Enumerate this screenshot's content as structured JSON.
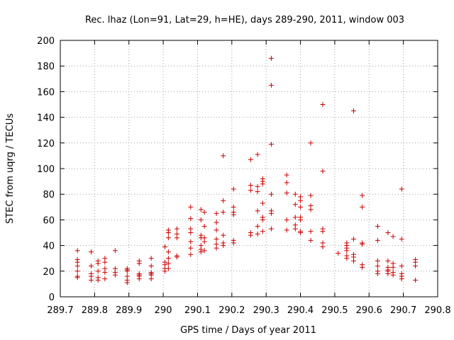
{
  "chart_data": {
    "type": "scatter",
    "title": "Rec. lhaz (Lon=91, Lat=29, h=HE), days 289-290, 2011, window 003",
    "xlabel": "GPS time / Days of year 2011",
    "ylabel": "STEC from uqrg / TECUs",
    "xlim": [
      289.7,
      290.8
    ],
    "ylim": [
      0,
      200
    ],
    "x_ticks": [
      "289.7",
      "289.8",
      "289.9",
      "290",
      "290.1",
      "290.2",
      "290.3",
      "290.4",
      "290.5",
      "290.6",
      "290.7",
      "290.8"
    ],
    "x_tick_values": [
      289.7,
      289.8,
      289.9,
      290.0,
      290.1,
      290.2,
      290.3,
      290.4,
      290.5,
      290.6,
      290.7,
      290.8
    ],
    "y_ticks": [
      "0",
      "20",
      "40",
      "60",
      "80",
      "100",
      "120",
      "140",
      "160",
      "180",
      "200"
    ],
    "y_tick_values": [
      0,
      20,
      40,
      60,
      80,
      100,
      120,
      140,
      160,
      180,
      200
    ],
    "grid": true,
    "marker": "plus",
    "colors": {
      "points": "#cc0000",
      "grid": "#a0a0a0",
      "axis": "#000000"
    },
    "series": [
      {
        "points": [
          [
            289.75,
            36
          ],
          [
            289.75,
            29
          ],
          [
            289.75,
            27
          ],
          [
            289.75,
            24
          ],
          [
            289.75,
            20
          ],
          [
            289.75,
            16
          ],
          [
            289.75,
            15
          ],
          [
            289.79,
            35
          ],
          [
            289.79,
            24
          ],
          [
            289.79,
            18
          ],
          [
            289.79,
            16
          ],
          [
            289.79,
            13
          ],
          [
            289.81,
            28
          ],
          [
            289.81,
            26
          ],
          [
            289.81,
            20
          ],
          [
            289.81,
            15
          ],
          [
            289.81,
            13
          ],
          [
            289.83,
            30
          ],
          [
            289.83,
            27
          ],
          [
            289.83,
            22
          ],
          [
            289.83,
            19
          ],
          [
            289.83,
            14
          ],
          [
            289.86,
            36
          ],
          [
            289.86,
            22
          ],
          [
            289.86,
            19
          ],
          [
            289.86,
            17
          ],
          [
            289.895,
            22
          ],
          [
            289.895,
            21
          ],
          [
            289.895,
            20
          ],
          [
            289.895,
            16
          ],
          [
            289.895,
            13
          ],
          [
            289.895,
            11
          ],
          [
            289.93,
            28
          ],
          [
            289.93,
            26
          ],
          [
            289.93,
            18
          ],
          [
            289.93,
            17
          ],
          [
            289.93,
            16
          ],
          [
            289.93,
            14
          ],
          [
            289.965,
            30
          ],
          [
            289.965,
            24
          ],
          [
            289.965,
            19
          ],
          [
            289.965,
            18
          ],
          [
            289.965,
            17
          ],
          [
            289.965,
            14
          ],
          [
            290.005,
            39
          ],
          [
            290.005,
            27
          ],
          [
            290.005,
            25
          ],
          [
            290.005,
            22
          ],
          [
            290.005,
            20
          ],
          [
            290.015,
            52
          ],
          [
            290.015,
            50
          ],
          [
            290.015,
            46
          ],
          [
            290.015,
            35
          ],
          [
            290.015,
            30
          ],
          [
            290.015,
            26
          ],
          [
            290.015,
            22
          ],
          [
            290.04,
            53
          ],
          [
            290.04,
            49
          ],
          [
            290.04,
            46
          ],
          [
            290.04,
            32
          ],
          [
            290.04,
            31
          ],
          [
            290.08,
            70
          ],
          [
            290.08,
            61
          ],
          [
            290.08,
            53
          ],
          [
            290.08,
            50
          ],
          [
            290.08,
            43
          ],
          [
            290.08,
            38
          ],
          [
            290.08,
            33
          ],
          [
            290.11,
            68
          ],
          [
            290.11,
            60
          ],
          [
            290.11,
            48
          ],
          [
            290.11,
            46
          ],
          [
            290.11,
            40
          ],
          [
            290.11,
            37
          ],
          [
            290.11,
            35
          ],
          [
            290.12,
            66
          ],
          [
            290.12,
            55
          ],
          [
            290.12,
            46
          ],
          [
            290.12,
            43
          ],
          [
            290.12,
            36
          ],
          [
            290.155,
            65
          ],
          [
            290.155,
            58
          ],
          [
            290.155,
            52
          ],
          [
            290.155,
            45
          ],
          [
            290.155,
            41
          ],
          [
            290.155,
            38
          ],
          [
            290.175,
            110
          ],
          [
            290.175,
            75
          ],
          [
            290.175,
            66
          ],
          [
            290.175,
            48
          ],
          [
            290.175,
            42
          ],
          [
            290.175,
            40
          ],
          [
            290.205,
            84
          ],
          [
            290.205,
            70
          ],
          [
            290.205,
            66
          ],
          [
            290.205,
            64
          ],
          [
            290.205,
            44
          ],
          [
            290.205,
            42
          ],
          [
            290.255,
            107
          ],
          [
            290.255,
            87
          ],
          [
            290.255,
            83
          ],
          [
            290.255,
            50
          ],
          [
            290.255,
            48
          ],
          [
            290.275,
            111
          ],
          [
            290.275,
            86
          ],
          [
            290.275,
            82
          ],
          [
            290.275,
            67
          ],
          [
            290.275,
            55
          ],
          [
            290.275,
            49
          ],
          [
            290.29,
            92
          ],
          [
            290.29,
            90
          ],
          [
            290.29,
            88
          ],
          [
            290.29,
            73
          ],
          [
            290.29,
            62
          ],
          [
            290.29,
            60
          ],
          [
            290.29,
            51
          ],
          [
            290.315,
            186
          ],
          [
            290.315,
            165
          ],
          [
            290.315,
            119
          ],
          [
            290.315,
            80
          ],
          [
            290.315,
            67
          ],
          [
            290.315,
            65
          ],
          [
            290.315,
            53
          ],
          [
            290.36,
            95
          ],
          [
            290.36,
            89
          ],
          [
            290.36,
            81
          ],
          [
            290.36,
            60
          ],
          [
            290.36,
            52
          ],
          [
            290.385,
            80
          ],
          [
            290.385,
            72
          ],
          [
            290.385,
            62
          ],
          [
            290.385,
            56
          ],
          [
            290.385,
            53
          ],
          [
            290.4,
            78
          ],
          [
            290.4,
            75
          ],
          [
            290.4,
            70
          ],
          [
            290.4,
            62
          ],
          [
            290.4,
            60
          ],
          [
            290.4,
            51
          ],
          [
            290.4,
            50
          ],
          [
            290.43,
            120
          ],
          [
            290.43,
            79
          ],
          [
            290.43,
            71
          ],
          [
            290.43,
            68
          ],
          [
            290.43,
            51
          ],
          [
            290.43,
            44
          ],
          [
            290.465,
            150
          ],
          [
            290.465,
            98
          ],
          [
            290.465,
            53
          ],
          [
            290.465,
            51
          ],
          [
            290.465,
            42
          ],
          [
            290.465,
            39
          ],
          [
            290.51,
            34
          ],
          [
            290.535,
            42
          ],
          [
            290.535,
            40
          ],
          [
            290.535,
            38
          ],
          [
            290.535,
            36
          ],
          [
            290.535,
            32
          ],
          [
            290.535,
            30
          ],
          [
            290.555,
            145
          ],
          [
            290.555,
            45
          ],
          [
            290.555,
            33
          ],
          [
            290.555,
            31
          ],
          [
            290.555,
            28
          ],
          [
            290.58,
            79
          ],
          [
            290.58,
            70
          ],
          [
            290.58,
            42
          ],
          [
            290.58,
            41
          ],
          [
            290.58,
            25
          ],
          [
            290.58,
            23
          ],
          [
            290.625,
            55
          ],
          [
            290.625,
            44
          ],
          [
            290.625,
            28
          ],
          [
            290.625,
            24
          ],
          [
            290.625,
            20
          ],
          [
            290.625,
            18
          ],
          [
            290.655,
            50
          ],
          [
            290.655,
            28
          ],
          [
            290.655,
            23
          ],
          [
            290.655,
            21
          ],
          [
            290.655,
            20
          ],
          [
            290.655,
            18
          ],
          [
            290.67,
            47
          ],
          [
            290.67,
            26
          ],
          [
            290.67,
            23
          ],
          [
            290.67,
            19
          ],
          [
            290.67,
            17
          ],
          [
            290.695,
            84
          ],
          [
            290.695,
            45
          ],
          [
            290.695,
            24
          ],
          [
            290.695,
            18
          ],
          [
            290.695,
            16
          ],
          [
            290.695,
            14
          ],
          [
            290.735,
            29
          ],
          [
            290.735,
            27
          ],
          [
            290.735,
            24
          ],
          [
            290.735,
            13
          ]
        ]
      }
    ]
  }
}
